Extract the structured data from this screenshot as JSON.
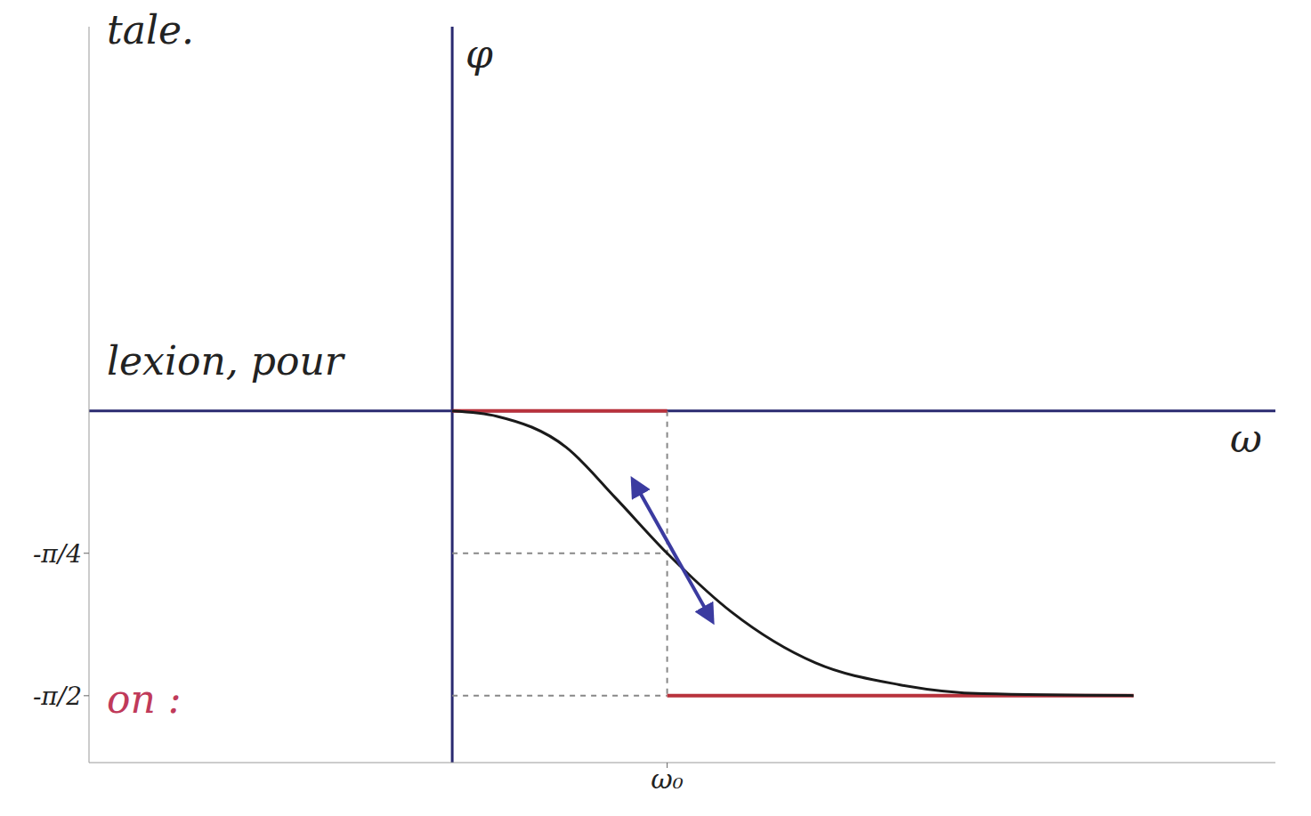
{
  "chart_data": {
    "type": "line",
    "x_label": "ω",
    "y_label": "φ",
    "x": [
      0,
      0.21,
      0.53,
      0.76,
      1,
      1.3,
      1.69,
      2.08,
      2.47,
      3.17
    ],
    "values": [
      0,
      -0.03,
      -0.2,
      -0.48,
      -0.785,
      -1.11,
      -1.39,
      -1.51,
      -1.56,
      -1.57
    ],
    "color": "#1a1a1a",
    "xlim": [
      -1.69,
      3.83
    ],
    "ylim": [
      -1.94,
      2.12
    ],
    "xticks": [
      {
        "value": 1,
        "label": "ω₀"
      }
    ],
    "yticks": [
      {
        "value": -0.785,
        "label": "-π/4"
      },
      {
        "value": -1.571,
        "label": "-π/2"
      }
    ],
    "grid": false,
    "asymptotes": {
      "color": "#b8323c",
      "segments": [
        {
          "x": [
            0,
            1
          ],
          "y": [
            0,
            0
          ]
        },
        {
          "x": [
            1,
            3.17
          ],
          "y": [
            -1.571,
            -1.571
          ]
        }
      ]
    },
    "tangent": {
      "color": "#3b3ba0",
      "x": [
        0.84,
        1.21
      ],
      "y": [
        -0.38,
        -1.16
      ]
    },
    "annotations": [
      {
        "text": "tale.",
        "color": "#222222"
      },
      {
        "text": "lexion, pour",
        "color": "#222222"
      },
      {
        "text": "on :",
        "color": "#c03a5a"
      }
    ]
  }
}
